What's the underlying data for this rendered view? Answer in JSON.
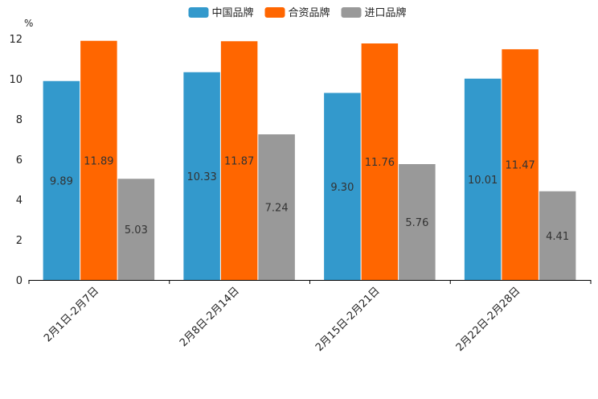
{
  "chart_data": {
    "type": "bar",
    "title": "",
    "ylabel": "%",
    "xlabel": "",
    "ylim": [
      0,
      12
    ],
    "yticks": [
      0,
      2,
      4,
      6,
      8,
      10,
      12
    ],
    "categories": [
      "2月1日-2月7日",
      "2月8日-2月14日",
      "2月15日-2月21日",
      "2月22日-2月28日"
    ],
    "series": [
      {
        "name": "中国品牌",
        "color": "#3399cc",
        "values": [
          9.89,
          10.33,
          9.3,
          10.01
        ],
        "labels": [
          "9.89",
          "10.33",
          "9.30",
          "10.01"
        ]
      },
      {
        "name": "合资品牌",
        "color": "#ff6600",
        "values": [
          11.89,
          11.87,
          11.76,
          11.47
        ],
        "labels": [
          "11.89",
          "11.87",
          "11.76",
          "11.47"
        ]
      },
      {
        "name": "进口品牌",
        "color": "#999999",
        "values": [
          5.03,
          7.24,
          5.76,
          4.41
        ],
        "labels": [
          "5.03",
          "7.24",
          "5.76",
          "4.41"
        ]
      }
    ],
    "legend_position": "top-center",
    "grid": false
  }
}
